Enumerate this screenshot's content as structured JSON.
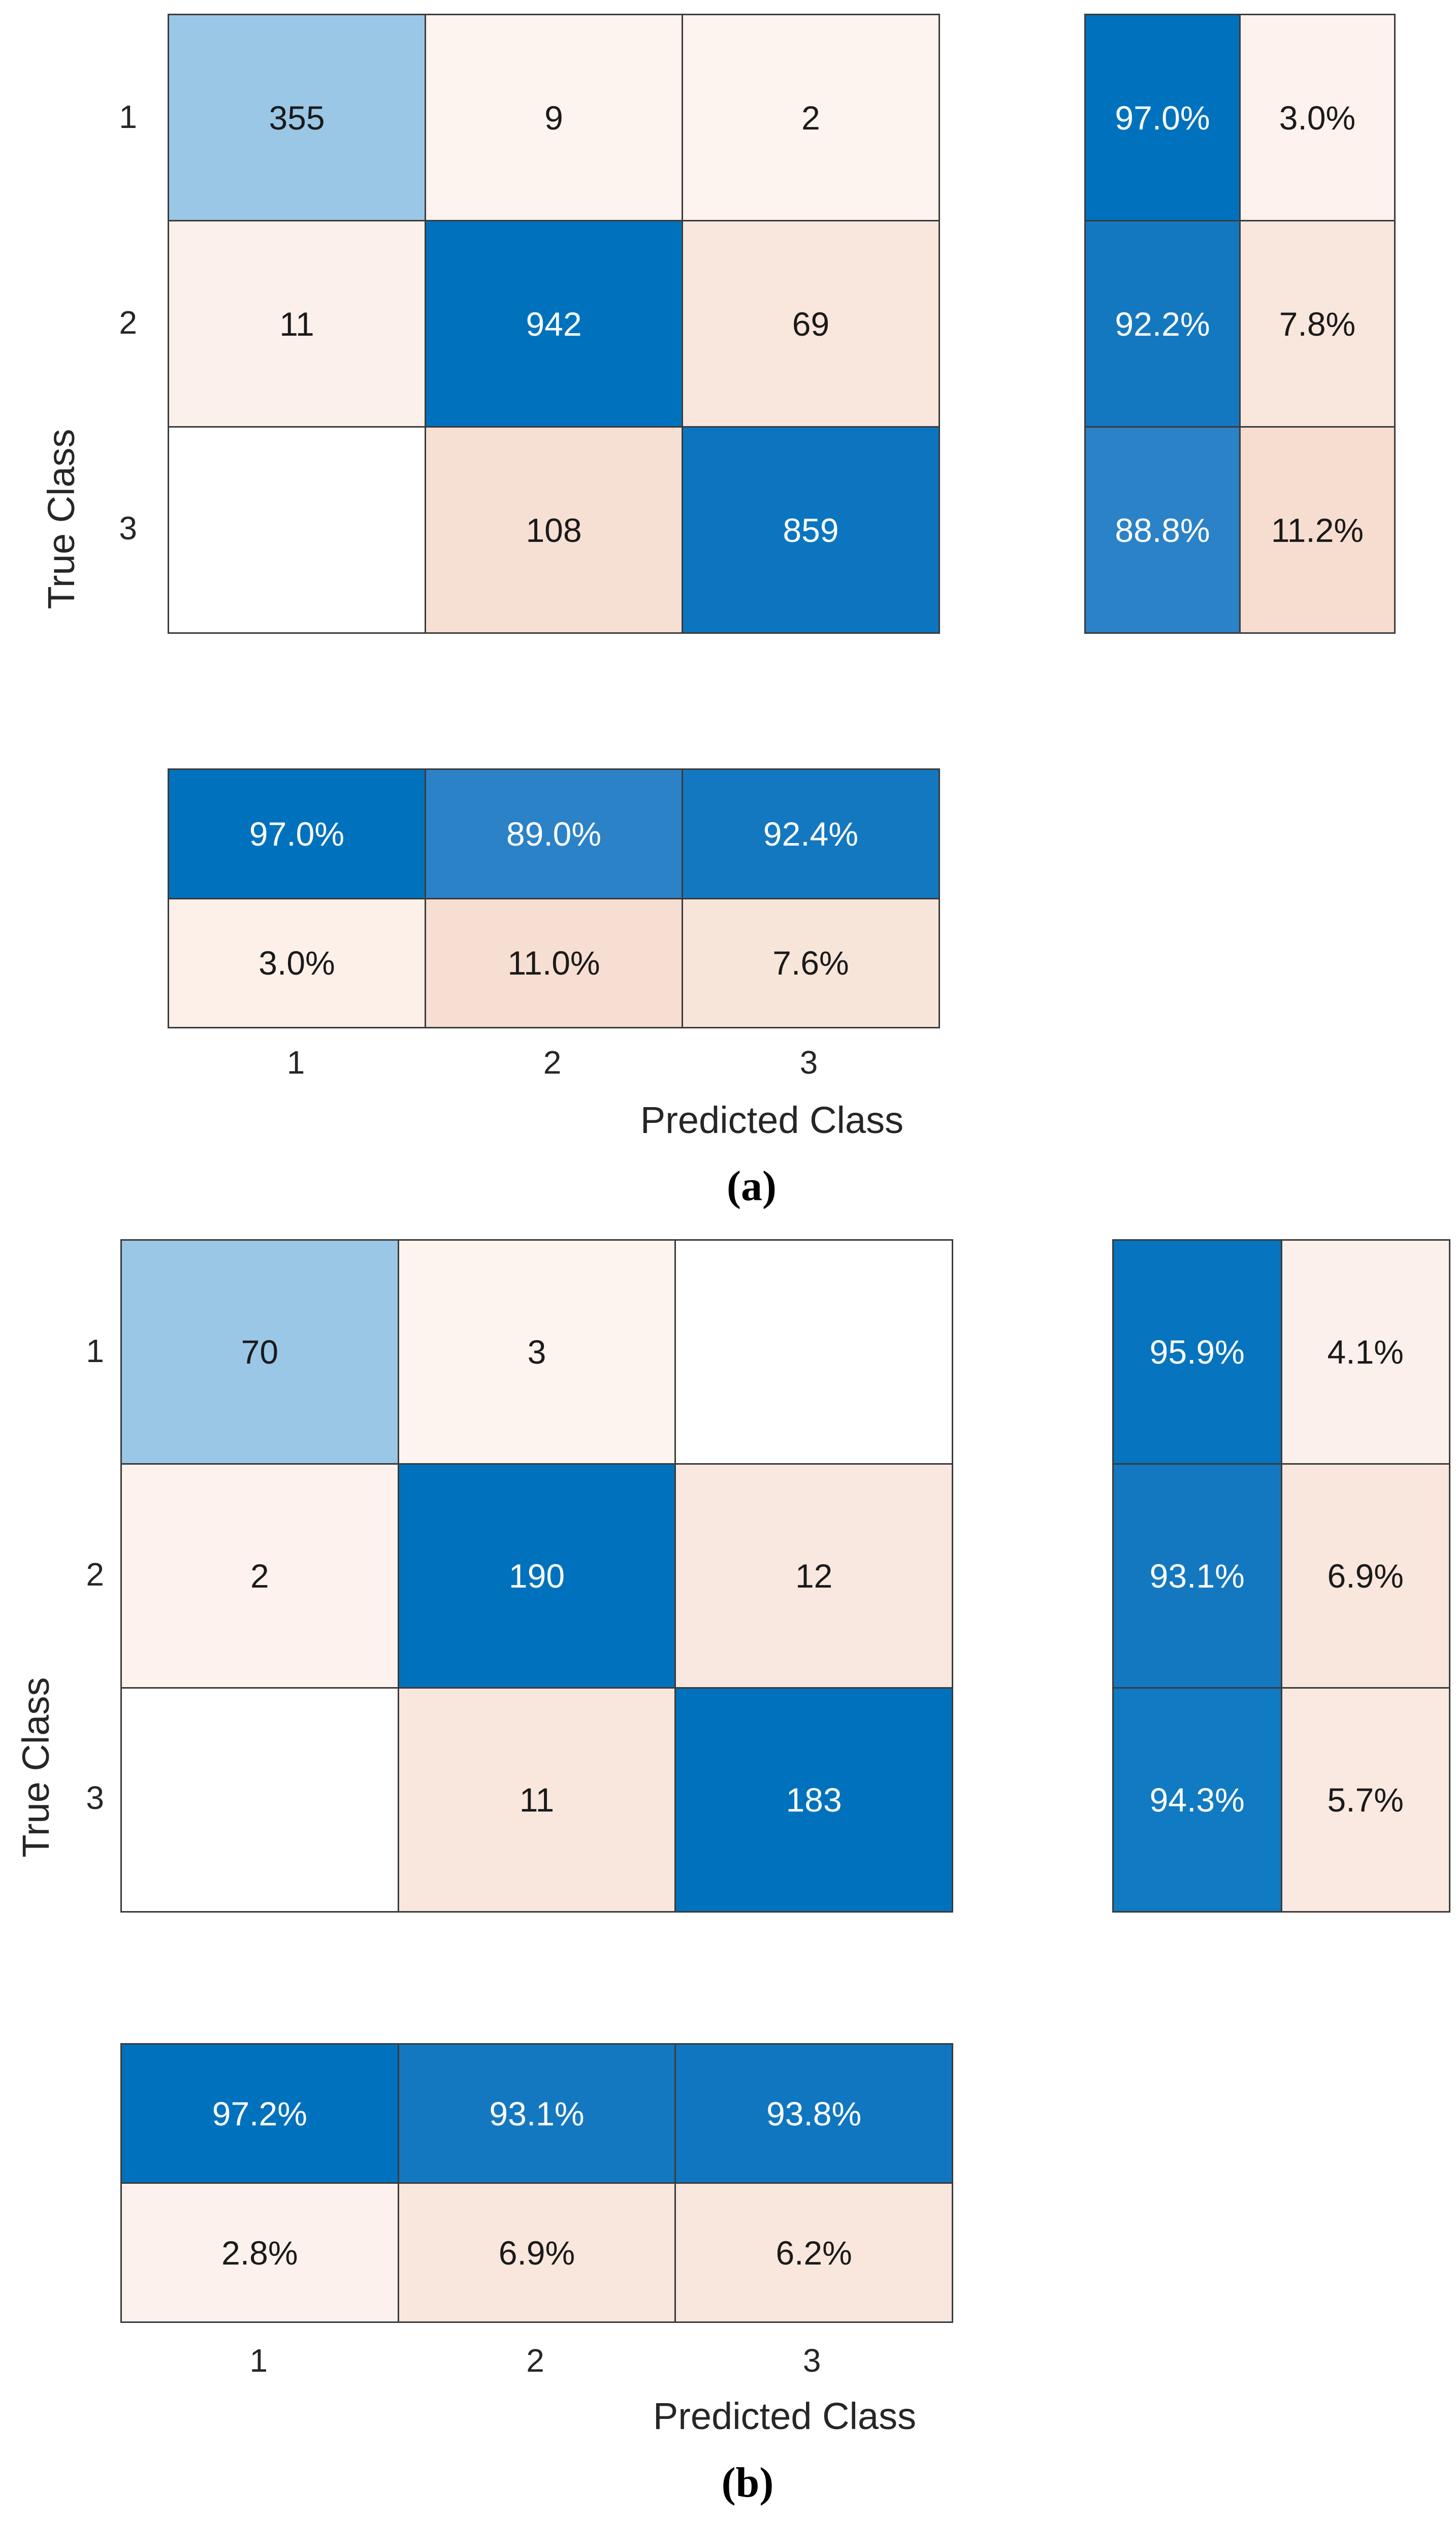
{
  "colors": {
    "grid_line": "#3b3b3b",
    "background": "#ffffff",
    "diagonal_blue": "#0072bd",
    "diagonal_light_blue": "#9ac7e6",
    "off_diagonal_pink": "#f6ddd0",
    "text_dark": "#1a1a1a",
    "text_light": "#ffffff"
  },
  "chart_data": [
    {
      "type": "heatmap",
      "title": "(a)",
      "xlabel": "Predicted Class",
      "ylabel": "True Class",
      "classes": [
        "1",
        "2",
        "3"
      ],
      "matrix": [
        [
          355,
          9,
          2
        ],
        [
          11,
          942,
          69
        ],
        [
          null,
          108,
          859
        ]
      ],
      "row_summary_pct": [
        [
          97.0,
          3.0
        ],
        [
          92.2,
          7.8
        ],
        [
          88.8,
          11.2
        ]
      ],
      "col_summary_pct": [
        [
          97.0,
          89.0,
          92.4
        ],
        [
          3.0,
          11.0,
          7.6
        ]
      ],
      "cells_matrix": [
        {
          "t": "355",
          "bg": "#9ac7e6",
          "fg": "#1a1a1a"
        },
        {
          "t": "9",
          "bg": "#fdf3ef",
          "fg": "#1a1a1a"
        },
        {
          "t": "2",
          "bg": "#fdf3ef",
          "fg": "#1a1a1a"
        },
        {
          "t": "11",
          "bg": "#fcf0ea",
          "fg": "#1a1a1a"
        },
        {
          "t": "942",
          "bg": "#0072bd",
          "fg": "#ffffff"
        },
        {
          "t": "69",
          "bg": "#f9e6dc",
          "fg": "#1a1a1a"
        },
        {
          "t": "",
          "bg": "#ffffff",
          "fg": "#1a1a1a"
        },
        {
          "t": "108",
          "bg": "#f6e0d4",
          "fg": "#1a1a1a"
        },
        {
          "t": "859",
          "bg": "#0b75bf",
          "fg": "#ffffff"
        }
      ],
      "cells_rowsum": [
        {
          "t": "97.0%",
          "bg": "#0072bd",
          "fg": "#ffffff"
        },
        {
          "t": "3.0%",
          "bg": "#fdf2ed",
          "fg": "#1a1a1a"
        },
        {
          "t": "92.2%",
          "bg": "#1478c1",
          "fg": "#ffffff"
        },
        {
          "t": "7.8%",
          "bg": "#f9e6dc",
          "fg": "#1a1a1a"
        },
        {
          "t": "88.8%",
          "bg": "#2b82c7",
          "fg": "#ffffff"
        },
        {
          "t": "11.2%",
          "bg": "#f6ddd0",
          "fg": "#1a1a1a"
        }
      ],
      "cells_colsum": [
        {
          "t": "97.0%",
          "bg": "#0072bd",
          "fg": "#ffffff"
        },
        {
          "t": "89.0%",
          "bg": "#2b82c7",
          "fg": "#ffffff"
        },
        {
          "t": "92.4%",
          "bg": "#1478c1",
          "fg": "#ffffff"
        },
        {
          "t": "3.0%",
          "bg": "#fcf0e9",
          "fg": "#1a1a1a"
        },
        {
          "t": "11.0%",
          "bg": "#f6ded2",
          "fg": "#1a1a1a"
        },
        {
          "t": "7.6%",
          "bg": "#f8e5da",
          "fg": "#1a1a1a"
        }
      ],
      "xticks": [
        {
          "t": "1"
        },
        {
          "t": "2"
        },
        {
          "t": "3"
        }
      ],
      "yticks": [
        {
          "t": "1"
        },
        {
          "t": "2"
        },
        {
          "t": "3"
        }
      ]
    },
    {
      "type": "heatmap",
      "title": "(b)",
      "xlabel": "Predicted Class",
      "ylabel": "True Class",
      "classes": [
        "1",
        "2",
        "3"
      ],
      "matrix": [
        [
          70,
          3,
          null
        ],
        [
          2,
          190,
          12
        ],
        [
          null,
          11,
          183
        ]
      ],
      "row_summary_pct": [
        [
          95.9,
          4.1
        ],
        [
          93.1,
          6.9
        ],
        [
          94.3,
          5.7
        ]
      ],
      "col_summary_pct": [
        [
          97.2,
          93.1,
          93.8
        ],
        [
          2.8,
          6.9,
          6.2
        ]
      ],
      "cells_matrix": [
        {
          "t": "70",
          "bg": "#9ac7e6",
          "fg": "#1a1a1a"
        },
        {
          "t": "3",
          "bg": "#fdf3ef",
          "fg": "#1a1a1a"
        },
        {
          "t": "",
          "bg": "#ffffff",
          "fg": "#1a1a1a"
        },
        {
          "t": "2",
          "bg": "#fdf2ed",
          "fg": "#1a1a1a"
        },
        {
          "t": "190",
          "bg": "#0072bd",
          "fg": "#ffffff"
        },
        {
          "t": "12",
          "bg": "#f9e8df",
          "fg": "#1a1a1a"
        },
        {
          "t": "",
          "bg": "#ffffff",
          "fg": "#1a1a1a"
        },
        {
          "t": "11",
          "bg": "#f9e7de",
          "fg": "#1a1a1a"
        },
        {
          "t": "183",
          "bg": "#0072bd",
          "fg": "#ffffff"
        }
      ],
      "cells_rowsum": [
        {
          "t": "95.9%",
          "bg": "#0674be",
          "fg": "#ffffff"
        },
        {
          "t": "4.1%",
          "bg": "#fcf0ea",
          "fg": "#1a1a1a"
        },
        {
          "t": "93.1%",
          "bg": "#1478c1",
          "fg": "#ffffff"
        },
        {
          "t": "6.9%",
          "bg": "#f9e6dc",
          "fg": "#1a1a1a"
        },
        {
          "t": "94.3%",
          "bg": "#107ac2",
          "fg": "#ffffff"
        },
        {
          "t": "5.7%",
          "bg": "#fae9e0",
          "fg": "#1a1a1a"
        }
      ],
      "cells_colsum": [
        {
          "t": "97.2%",
          "bg": "#0072bd",
          "fg": "#ffffff"
        },
        {
          "t": "93.1%",
          "bg": "#1478c1",
          "fg": "#ffffff"
        },
        {
          "t": "93.8%",
          "bg": "#1076c0",
          "fg": "#ffffff"
        },
        {
          "t": "2.8%",
          "bg": "#fcf1ec",
          "fg": "#1a1a1a"
        },
        {
          "t": "6.9%",
          "bg": "#f9e6dc",
          "fg": "#1a1a1a"
        },
        {
          "t": "6.2%",
          "bg": "#f9e7dd",
          "fg": "#1a1a1a"
        }
      ],
      "xticks": [
        {
          "t": "1"
        },
        {
          "t": "2"
        },
        {
          "t": "3"
        }
      ],
      "yticks": [
        {
          "t": "1"
        },
        {
          "t": "2"
        },
        {
          "t": "3"
        }
      ]
    }
  ]
}
